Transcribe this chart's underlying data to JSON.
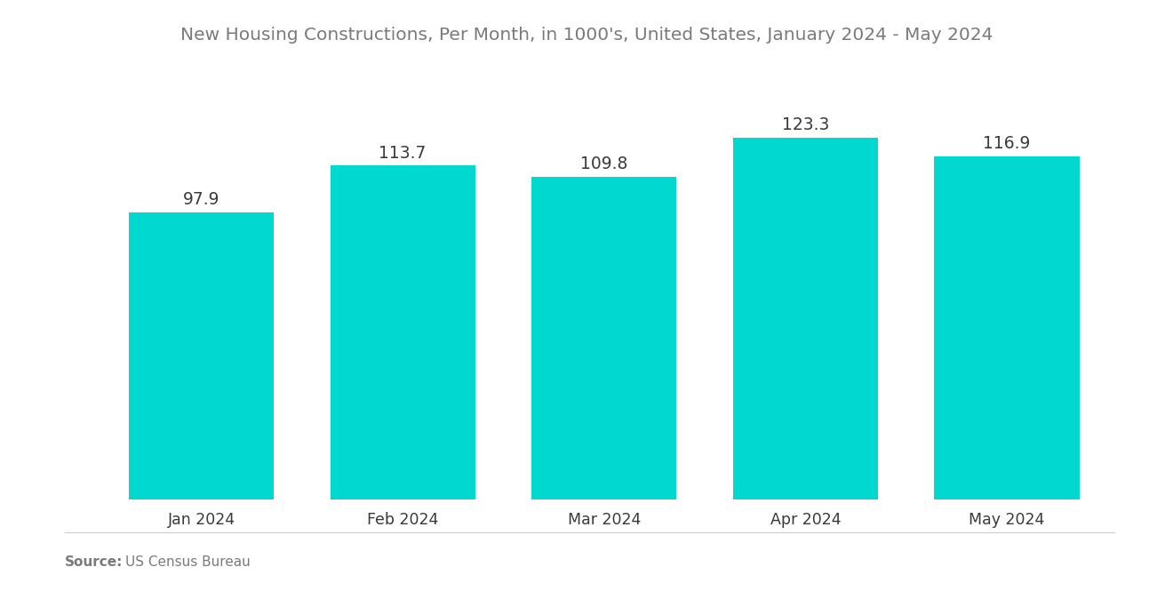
{
  "title": "New Housing Constructions, Per Month, in 1000's, United States, January 2024 - May 2024",
  "categories": [
    "Jan 2024",
    "Feb 2024",
    "Mar 2024",
    "Apr 2024",
    "May 2024"
  ],
  "values": [
    97.9,
    113.7,
    109.8,
    123.3,
    116.9
  ],
  "bar_color": "#00D8D0",
  "title_color": "#7a7a7a",
  "label_color": "#3a3a3a",
  "source_bold": "Source:",
  "source_text": "US Census Bureau",
  "source_color": "#7a7a7a",
  "background_color": "#ffffff",
  "bar_width": 0.72,
  "ylim": [
    0,
    145
  ],
  "title_fontsize": 14.5,
  "label_fontsize": 13.5,
  "tick_fontsize": 12.5,
  "source_fontsize": 11
}
